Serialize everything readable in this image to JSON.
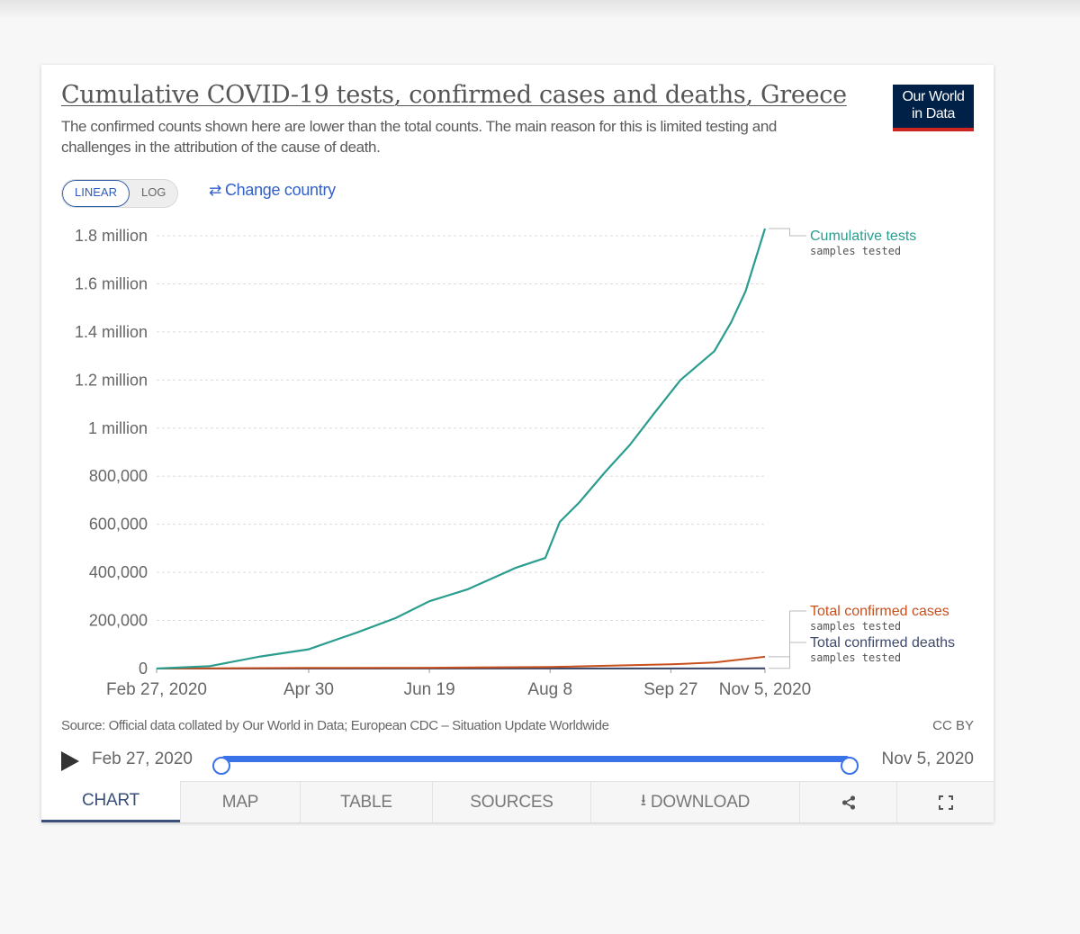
{
  "header": {
    "title": "Cumulative COVID-19 tests, confirmed cases and deaths, Greece",
    "subtitle": "The confirmed counts shown here are lower than the total counts. The main reason for this is limited testing and challenges in the attribution of the cause of death.",
    "logo_line1": "Our World",
    "logo_line2": "in Data"
  },
  "controls": {
    "linear_label": "LINEAR",
    "log_label": "LOG",
    "change_country_label": "Change country",
    "change_country_icon": "swap-arrows-icon"
  },
  "footer": {
    "source": "Source: Official data collated by Our World in Data; European CDC – Situation Update Worldwide",
    "license": "CC BY"
  },
  "timeline": {
    "start_label": "Feb 27, 2020",
    "end_label": "Nov 5, 2020",
    "start_fraction": 0,
    "end_fraction": 1
  },
  "tabs": [
    {
      "label": "CHART",
      "active": true
    },
    {
      "label": "MAP"
    },
    {
      "label": "TABLE"
    },
    {
      "label": "SOURCES"
    },
    {
      "label": "DOWNLOAD",
      "icon": "download-icon"
    },
    {
      "label": "",
      "icon": "share-icon"
    },
    {
      "label": "",
      "icon": "fullscreen-icon"
    }
  ],
  "chart_data": {
    "type": "line",
    "title": "Cumulative COVID-19 tests, confirmed cases and deaths, Greece",
    "xlabel": "",
    "ylabel": "",
    "y_scale": "linear",
    "xlim": [
      "2020-02-27",
      "2020-11-05"
    ],
    "ylim": [
      0,
      1800000
    ],
    "x_ticks": [
      {
        "date": "2020-02-27",
        "label": "Feb 27, 2020"
      },
      {
        "date": "2020-04-30",
        "label": "Apr 30"
      },
      {
        "date": "2020-06-19",
        "label": "Jun 19"
      },
      {
        "date": "2020-08-08",
        "label": "Aug 8"
      },
      {
        "date": "2020-09-27",
        "label": "Sep 27"
      },
      {
        "date": "2020-11-05",
        "label": "Nov 5, 2020"
      }
    ],
    "y_ticks": [
      {
        "value": 0,
        "label": "0"
      },
      {
        "value": 200000,
        "label": "200,000"
      },
      {
        "value": 400000,
        "label": "400,000"
      },
      {
        "value": 600000,
        "label": "600,000"
      },
      {
        "value": 800000,
        "label": "800,000"
      },
      {
        "value": 1000000,
        "label": "1 million"
      },
      {
        "value": 1200000,
        "label": "1.2 million"
      },
      {
        "value": 1400000,
        "label": "1.4 million"
      },
      {
        "value": 1600000,
        "label": "1.6 million"
      },
      {
        "value": 1800000,
        "label": "1.8 million"
      }
    ],
    "grid": "horizontal-dashed",
    "legend": "right-labels",
    "series": [
      {
        "name": "Cumulative tests",
        "sublabel": "samples tested",
        "color": "#2a9d8f",
        "x": [
          "2020-02-27",
          "2020-03-20",
          "2020-04-10",
          "2020-04-30",
          "2020-05-20",
          "2020-06-05",
          "2020-06-19",
          "2020-07-05",
          "2020-07-25",
          "2020-08-06",
          "2020-08-12",
          "2020-08-20",
          "2020-08-31",
          "2020-09-10",
          "2020-09-20",
          "2020-10-01",
          "2020-10-15",
          "2020-10-22",
          "2020-10-28",
          "2020-11-05"
        ],
        "values": [
          0,
          10000,
          50000,
          80000,
          150000,
          210000,
          280000,
          330000,
          420000,
          460000,
          610000,
          690000,
          820000,
          930000,
          1060000,
          1200000,
          1320000,
          1440000,
          1570000,
          1830000
        ]
      },
      {
        "name": "Total confirmed cases",
        "sublabel": "samples tested",
        "color": "#c8501e",
        "x": [
          "2020-02-27",
          "2020-04-30",
          "2020-06-19",
          "2020-08-08",
          "2020-09-27",
          "2020-10-15",
          "2020-11-05"
        ],
        "values": [
          0,
          2600,
          3300,
          6200,
          17700,
          25000,
          49000
        ]
      },
      {
        "name": "Total confirmed deaths",
        "sublabel": "samples tested",
        "color": "#3e4a6b",
        "x": [
          "2020-02-27",
          "2020-04-30",
          "2020-06-19",
          "2020-08-08",
          "2020-09-27",
          "2020-11-05"
        ],
        "values": [
          0,
          140,
          190,
          210,
          380,
          700
        ]
      }
    ]
  }
}
